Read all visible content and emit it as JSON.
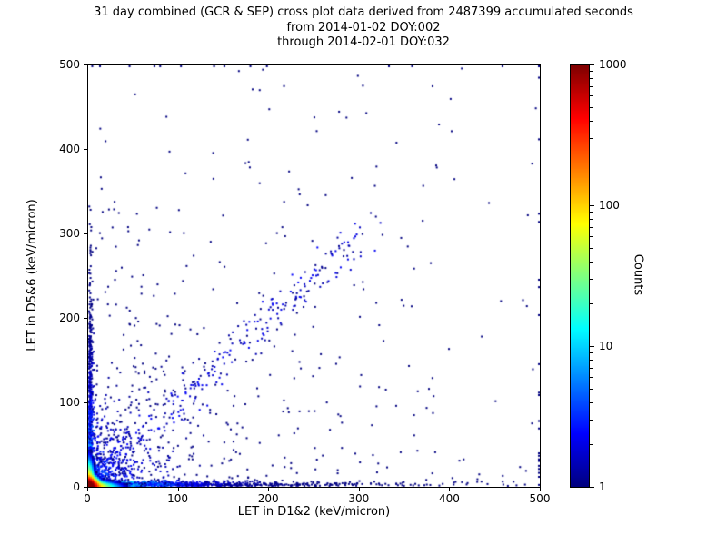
{
  "title": {
    "line1": "31 day combined (GCR & SEP) cross plot data derived from 2487399 accumulated seconds",
    "line2": "from 2014-01-02 DOY:002",
    "line3": "through 2014-02-01 DOY:032"
  },
  "chart_data": {
    "type": "heatmap",
    "title": "31 day combined (GCR & SEP) cross plot data derived from 2487399 accumulated seconds",
    "subtitle1": "from 2014-01-02 DOY:002",
    "subtitle2": "through 2014-02-01 DOY:032",
    "xlabel": "LET in D1&2 (keV/micron)",
    "ylabel": "LET in D5&6 (keV/micron)",
    "xlim": [
      0,
      500
    ],
    "ylim": [
      0,
      500
    ],
    "xticks": [
      0,
      100,
      200,
      300,
      400,
      500
    ],
    "yticks": [
      0,
      100,
      200,
      300,
      400,
      500
    ],
    "grid": false,
    "colorbar": {
      "label": "Counts",
      "scale": "log",
      "min": 1,
      "max": 1000,
      "ticks": [
        1,
        10,
        100,
        1000
      ],
      "colormap": "jet"
    },
    "clusters": [
      {
        "type": "core",
        "peak": 2000,
        "sigma": 4.5,
        "tail": 700,
        "tail_scale": 7,
        "extent": 44,
        "cell": 2
      },
      {
        "type": "band_x",
        "n": 1200,
        "x_scale": 90,
        "x_max": 500,
        "y_scale": 3,
        "count_scale": 4
      },
      {
        "type": "band_y",
        "n": 900,
        "y_scale": 80,
        "y_max": 340,
        "x_scale": 2.5,
        "count_scale": 3
      },
      {
        "type": "fan",
        "n": 800,
        "r_scale": 45,
        "r_max": 180,
        "count_scale": 2
      },
      {
        "type": "diagonal",
        "n": 260,
        "r_max": 310,
        "jitter": 12,
        "count_scale": 1.5
      },
      {
        "type": "sparse",
        "n": 380,
        "x_scale": 180,
        "y_scale": 150,
        "count": 1
      },
      {
        "type": "points",
        "count": 1,
        "pts": [
          [
            285,
            437
          ],
          [
            252,
            421
          ],
          [
            232,
            352
          ],
          [
            208,
            300
          ],
          [
            214,
            307
          ],
          [
            196,
            288
          ],
          [
            242,
            333
          ],
          [
            262,
            345
          ],
          [
            216,
            210
          ],
          [
            238,
            225
          ],
          [
            205,
            252
          ],
          [
            190,
            210
          ],
          [
            178,
            170
          ],
          [
            162,
            150
          ],
          [
            15,
            325
          ],
          [
            12,
            300
          ],
          [
            22,
            328
          ],
          [
            8,
            282
          ],
          [
            30,
            255
          ],
          [
            18,
            230
          ],
          [
            95,
            228
          ],
          [
            60,
            250
          ],
          [
            45,
            208
          ],
          [
            120,
            180
          ],
          [
            140,
            120
          ],
          [
            160,
            95
          ],
          [
            210,
            60
          ],
          [
            250,
            45
          ],
          [
            300,
            28
          ],
          [
            345,
            40
          ],
          [
            380,
            15
          ],
          [
            430,
            8
          ],
          [
            458,
            12
          ],
          [
            340,
            95
          ],
          [
            300,
            118
          ],
          [
            280,
            75
          ],
          [
            255,
            140
          ],
          [
            225,
            160
          ],
          [
            330,
            22
          ],
          [
            360,
            60
          ],
          [
            410,
            30
          ],
          [
            470,
            5
          ],
          [
            150,
            260
          ],
          [
            105,
            300
          ],
          [
            75,
            330
          ]
        ]
      }
    ]
  }
}
